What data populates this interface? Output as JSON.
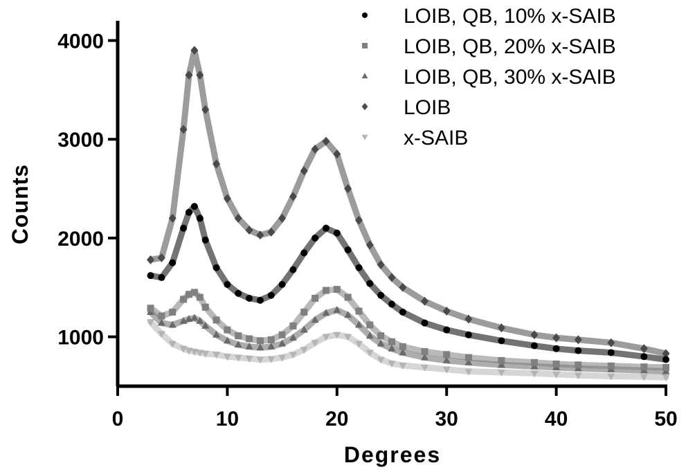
{
  "chart_data": {
    "type": "scatter",
    "title": "",
    "xlabel": "Degrees",
    "ylabel": "Counts",
    "xlim": [
      0,
      50
    ],
    "ylim": [
      500,
      4200
    ],
    "x_ticks": [
      0,
      10,
      20,
      30,
      40,
      50
    ],
    "y_ticks": [
      1000,
      2000,
      3000,
      4000
    ],
    "x_tick_labels": [
      "0",
      "10",
      "20",
      "30",
      "40",
      "50"
    ],
    "y_tick_labels": [
      "1000",
      "2000",
      "3000",
      "4000"
    ],
    "grid": false,
    "legend_position": "top-right",
    "x": [
      3,
      4,
      5,
      6,
      6.5,
      7,
      7.5,
      8,
      9,
      10,
      11,
      12,
      13,
      14,
      15,
      16,
      17,
      18,
      19,
      20,
      21,
      22,
      23,
      24,
      25,
      26,
      28,
      30,
      32,
      35,
      38,
      40,
      42,
      45,
      48,
      50
    ],
    "series": [
      {
        "name": "LOIB, QB, 10% x-SAIB",
        "marker": "circle",
        "color": "#000000",
        "values": [
          1620,
          1600,
          1750,
          2100,
          2260,
          2320,
          2200,
          1980,
          1700,
          1530,
          1440,
          1390,
          1370,
          1420,
          1530,
          1680,
          1850,
          2000,
          2100,
          2050,
          1880,
          1700,
          1540,
          1420,
          1330,
          1250,
          1140,
          1070,
          1020,
          960,
          910,
          880,
          860,
          840,
          800,
          770
        ]
      },
      {
        "name": "LOIB, QB, 20% x-SAIB",
        "marker": "square",
        "color": "#808080",
        "values": [
          1290,
          1210,
          1250,
          1380,
          1430,
          1450,
          1400,
          1300,
          1170,
          1070,
          1010,
          980,
          960,
          970,
          1020,
          1110,
          1250,
          1390,
          1470,
          1480,
          1400,
          1260,
          1120,
          1010,
          950,
          900,
          850,
          820,
          790,
          760,
          740,
          725,
          715,
          705,
          695,
          690
        ]
      },
      {
        "name": "LOIB, QB, 30% x-SAIB",
        "marker": "triangle",
        "color": "#6a6a6a",
        "values": [
          1250,
          1140,
          1120,
          1160,
          1180,
          1190,
          1160,
          1110,
          1020,
          960,
          920,
          900,
          890,
          900,
          930,
          990,
          1070,
          1170,
          1240,
          1270,
          1220,
          1120,
          1010,
          930,
          880,
          840,
          790,
          760,
          740,
          715,
          700,
          690,
          680,
          670,
          660,
          650
        ]
      },
      {
        "name": "LOIB",
        "marker": "diamond",
        "color": "#4a4a4a",
        "values": [
          1780,
          1800,
          2200,
          3100,
          3650,
          3900,
          3650,
          3300,
          2750,
          2400,
          2200,
          2080,
          2030,
          2060,
          2200,
          2420,
          2680,
          2900,
          2980,
          2850,
          2500,
          2180,
          1930,
          1730,
          1600,
          1500,
          1360,
          1260,
          1180,
          1090,
          1020,
          990,
          970,
          940,
          880,
          830
        ]
      },
      {
        "name": "x-SAIB",
        "marker": "triangle-down",
        "color": "#b4b4b4",
        "values": [
          1150,
          1030,
          930,
          880,
          860,
          850,
          840,
          830,
          820,
          800,
          790,
          780,
          770,
          775,
          790,
          820,
          870,
          940,
          1000,
          1020,
          1000,
          930,
          840,
          770,
          730,
          710,
          690,
          670,
          650,
          640,
          630,
          620,
          610,
          600,
          595,
          590
        ]
      }
    ]
  }
}
